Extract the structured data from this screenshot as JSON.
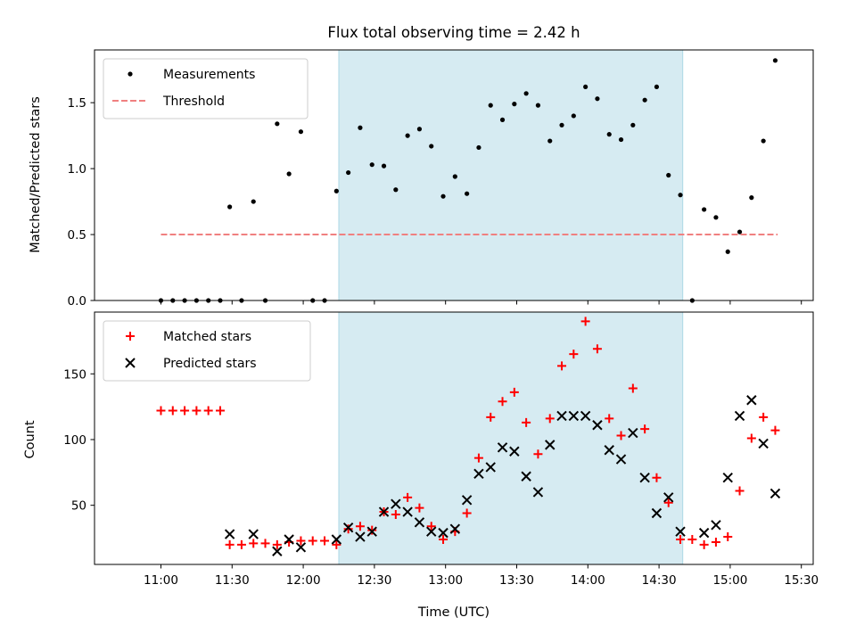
{
  "chart_data": [
    {
      "type": "scatter",
      "title": "Flux total observing time = 2.42 h",
      "ylabel": "Matched/Predicted stars",
      "ylim": [
        0,
        1.9
      ],
      "yticks": [
        "0.0",
        "0.5",
        "1.0",
        "1.5"
      ],
      "xlim_minutes": [
        -28,
        275
      ],
      "highlight_span": [
        "12:15",
        "14:40"
      ],
      "legend": {
        "placement": "top-left",
        "entries": [
          "Measurements",
          "Threshold"
        ]
      },
      "threshold": {
        "name": "Threshold",
        "value": 0.5,
        "x_start": "11:00",
        "x_end": "15:20",
        "color": "#f08080",
        "style": "dashed"
      },
      "series": [
        {
          "name": "Measurements",
          "color": "#000000",
          "points": [
            [
              "11:00",
              0.0
            ],
            [
              "11:05",
              0.0
            ],
            [
              "11:10",
              0.0
            ],
            [
              "11:15",
              0.0
            ],
            [
              "11:20",
              0.0
            ],
            [
              "11:25",
              0.0
            ],
            [
              "11:29",
              0.71
            ],
            [
              "11:34",
              0.0
            ],
            [
              "11:39",
              0.75
            ],
            [
              "11:44",
              0.0
            ],
            [
              "11:49",
              1.34
            ],
            [
              "11:54",
              0.96
            ],
            [
              "11:59",
              1.28
            ],
            [
              "12:04",
              0.0
            ],
            [
              "12:09",
              0.0
            ],
            [
              "12:14",
              0.83
            ],
            [
              "12:19",
              0.97
            ],
            [
              "12:24",
              1.31
            ],
            [
              "12:29",
              1.03
            ],
            [
              "12:34",
              1.02
            ],
            [
              "12:39",
              0.84
            ],
            [
              "12:44",
              1.25
            ],
            [
              "12:49",
              1.3
            ],
            [
              "12:54",
              1.17
            ],
            [
              "12:59",
              0.79
            ],
            [
              "13:04",
              0.94
            ],
            [
              "13:09",
              0.81
            ],
            [
              "13:14",
              1.16
            ],
            [
              "13:19",
              1.48
            ],
            [
              "13:24",
              1.37
            ],
            [
              "13:29",
              1.49
            ],
            [
              "13:34",
              1.57
            ],
            [
              "13:39",
              1.48
            ],
            [
              "13:44",
              1.21
            ],
            [
              "13:49",
              1.33
            ],
            [
              "13:54",
              1.4
            ],
            [
              "13:59",
              1.62
            ],
            [
              "14:04",
              1.53
            ],
            [
              "14:09",
              1.26
            ],
            [
              "14:14",
              1.22
            ],
            [
              "14:19",
              1.33
            ],
            [
              "14:24",
              1.52
            ],
            [
              "14:29",
              1.62
            ],
            [
              "14:34",
              0.95
            ],
            [
              "14:39",
              0.8
            ],
            [
              "14:44",
              0.0
            ],
            [
              "14:49",
              0.69
            ],
            [
              "14:54",
              0.63
            ],
            [
              "14:59",
              0.37
            ],
            [
              "15:04",
              0.52
            ],
            [
              "15:09",
              0.78
            ],
            [
              "15:14",
              1.21
            ],
            [
              "15:19",
              1.82
            ]
          ]
        }
      ]
    },
    {
      "type": "scatter",
      "title": "",
      "xlabel": "Time (UTC)",
      "ylabel": "Count",
      "ylim": [
        5,
        197
      ],
      "yticks": [
        "50",
        "100",
        "150"
      ],
      "xticks": [
        "11:00",
        "11:30",
        "12:00",
        "12:30",
        "13:00",
        "13:30",
        "14:00",
        "14:30",
        "15:00",
        "15:30"
      ],
      "xlim_minutes": [
        -28,
        275
      ],
      "highlight_span": [
        "12:15",
        "14:40"
      ],
      "legend": {
        "placement": "top-left",
        "entries": [
          "Matched stars",
          "Predicted stars"
        ]
      },
      "series": [
        {
          "name": "Matched stars",
          "marker": "plus",
          "color": "#ff0000",
          "points": [
            [
              "11:00",
              122
            ],
            [
              "11:05",
              122
            ],
            [
              "11:10",
              122
            ],
            [
              "11:15",
              122
            ],
            [
              "11:20",
              122
            ],
            [
              "11:25",
              122
            ],
            [
              "11:29",
              20
            ],
            [
              "11:34",
              20
            ],
            [
              "11:39",
              21
            ],
            [
              "11:44",
              21
            ],
            [
              "11:49",
              20
            ],
            [
              "11:54",
              22
            ],
            [
              "11:59",
              23
            ],
            [
              "12:04",
              23
            ],
            [
              "12:09",
              23
            ],
            [
              "12:14",
              20
            ],
            [
              "12:19",
              32
            ],
            [
              "12:24",
              34
            ],
            [
              "12:29",
              31
            ],
            [
              "12:34",
              45
            ],
            [
              "12:39",
              43
            ],
            [
              "12:44",
              56
            ],
            [
              "12:49",
              48
            ],
            [
              "12:54",
              34
            ],
            [
              "12:59",
              24
            ],
            [
              "13:04",
              30
            ],
            [
              "13:09",
              44
            ],
            [
              "13:14",
              86
            ],
            [
              "13:19",
              117
            ],
            [
              "13:24",
              129
            ],
            [
              "13:29",
              136
            ],
            [
              "13:34",
              113
            ],
            [
              "13:39",
              89
            ],
            [
              "13:44",
              116
            ],
            [
              "13:49",
              156
            ],
            [
              "13:54",
              165
            ],
            [
              "13:59",
              190
            ],
            [
              "14:04",
              169
            ],
            [
              "14:09",
              116
            ],
            [
              "14:14",
              103
            ],
            [
              "14:19",
              139
            ],
            [
              "14:24",
              108
            ],
            [
              "14:29",
              71
            ],
            [
              "14:34",
              52
            ],
            [
              "14:39",
              24
            ],
            [
              "14:44",
              24
            ],
            [
              "14:49",
              20
            ],
            [
              "14:54",
              22
            ],
            [
              "14:59",
              26
            ],
            [
              "15:04",
              61
            ],
            [
              "15:09",
              101
            ],
            [
              "15:14",
              117
            ],
            [
              "15:19",
              107
            ]
          ]
        },
        {
          "name": "Predicted stars",
          "marker": "x",
          "color": "#000000",
          "points": [
            [
              "11:29",
              28
            ],
            [
              "11:39",
              28
            ],
            [
              "11:49",
              15
            ],
            [
              "11:54",
              24
            ],
            [
              "11:59",
              18
            ],
            [
              "12:14",
              24
            ],
            [
              "12:19",
              33
            ],
            [
              "12:24",
              26
            ],
            [
              "12:29",
              30
            ],
            [
              "12:34",
              45
            ],
            [
              "12:39",
              51
            ],
            [
              "12:44",
              45
            ],
            [
              "12:49",
              37
            ],
            [
              "12:54",
              30
            ],
            [
              "12:59",
              29
            ],
            [
              "13:04",
              32
            ],
            [
              "13:09",
              54
            ],
            [
              "13:14",
              74
            ],
            [
              "13:19",
              79
            ],
            [
              "13:24",
              94
            ],
            [
              "13:29",
              91
            ],
            [
              "13:34",
              72
            ],
            [
              "13:39",
              60
            ],
            [
              "13:44",
              96
            ],
            [
              "13:49",
              118
            ],
            [
              "13:54",
              118
            ],
            [
              "13:59",
              118
            ],
            [
              "14:04",
              111
            ],
            [
              "14:09",
              92
            ],
            [
              "14:14",
              85
            ],
            [
              "14:19",
              105
            ],
            [
              "14:24",
              71
            ],
            [
              "14:29",
              44
            ],
            [
              "14:34",
              56
            ],
            [
              "14:39",
              30
            ],
            [
              "14:49",
              29
            ],
            [
              "14:54",
              35
            ],
            [
              "14:59",
              71
            ],
            [
              "15:04",
              118
            ],
            [
              "15:09",
              130
            ],
            [
              "15:14",
              97
            ],
            [
              "15:19",
              59
            ]
          ]
        }
      ]
    }
  ]
}
